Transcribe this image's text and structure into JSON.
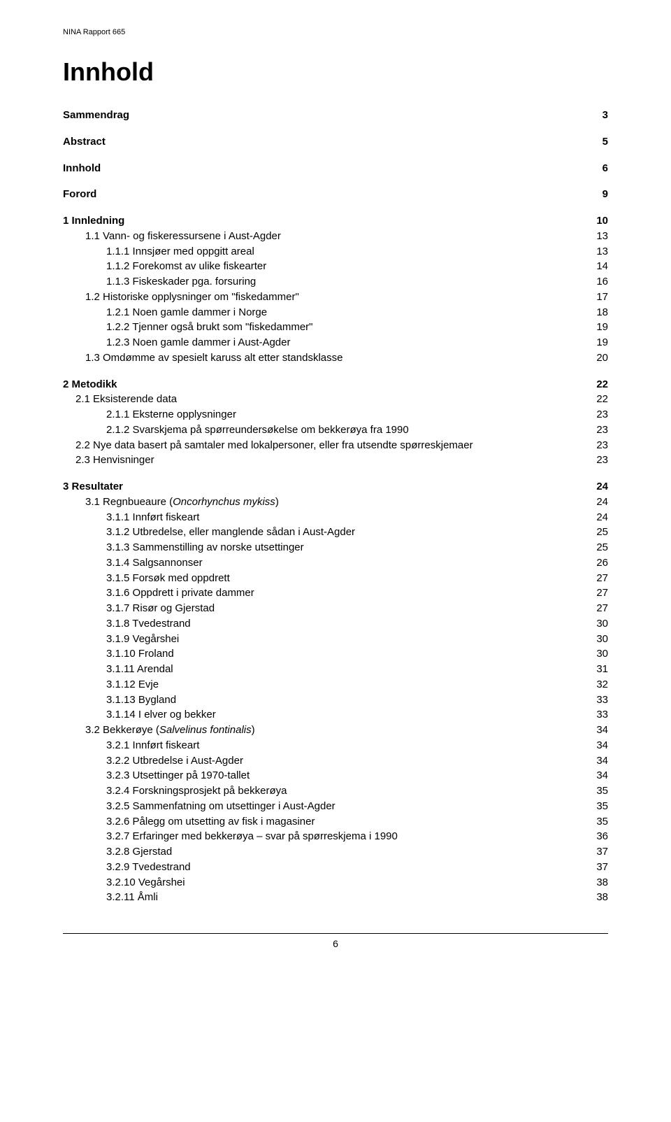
{
  "running_header": "NINA Rapport 665",
  "main_title": "Innhold",
  "page_number": "6",
  "toc": [
    {
      "level": 0,
      "bold": true,
      "label": "Sammendrag",
      "page": "3",
      "gap_after": true
    },
    {
      "level": 0,
      "bold": true,
      "label": "Abstract",
      "page": "5",
      "gap_after": true
    },
    {
      "level": 0,
      "bold": true,
      "label": "Innhold",
      "page": "6",
      "gap_after": true
    },
    {
      "level": 0,
      "bold": true,
      "label": "Forord",
      "page": "9",
      "gap_after": true
    },
    {
      "level": 0,
      "bold": true,
      "label": "1  Innledning",
      "page": "10"
    },
    {
      "level": 1,
      "bold": false,
      "label": "1.1 Vann- og fiskeressursene i Aust-Agder",
      "page": "13"
    },
    {
      "level": 2,
      "bold": false,
      "label": "1.1.1  Innsjøer med oppgitt areal",
      "page": "13"
    },
    {
      "level": 2,
      "bold": false,
      "label": "1.1.2  Forekomst av ulike fiskearter",
      "page": "14"
    },
    {
      "level": 2,
      "bold": false,
      "label": "1.1.3  Fiskeskader pga. forsuring",
      "page": "16"
    },
    {
      "level": 1,
      "bold": false,
      "label": "1.2 Historiske opplysninger om \"fiskedammer\"",
      "page": "17"
    },
    {
      "level": 2,
      "bold": false,
      "label": "1.2.1  Noen gamle dammer i Norge",
      "page": "18"
    },
    {
      "level": 2,
      "bold": false,
      "label": "1.2.2  Tjenner også brukt som \"fiskedammer\"",
      "page": "19"
    },
    {
      "level": 2,
      "bold": false,
      "label": "1.2.3  Noen gamle dammer i Aust-Agder",
      "page": "19"
    },
    {
      "level": 1,
      "bold": false,
      "label": "1.3 Omdømme av spesielt karuss alt etter standsklasse",
      "page": "20",
      "gap_after": true
    },
    {
      "level": 0,
      "bold": true,
      "label": "2  Metodikk",
      "page": "22"
    },
    {
      "level": 1,
      "bold": false,
      "label": "2.1 Eksisterende data",
      "page": "22",
      "indent": "b"
    },
    {
      "level": 2,
      "bold": false,
      "label": "2.1.1 Eksterne opplysninger",
      "page": "23"
    },
    {
      "level": 2,
      "bold": false,
      "label": "2.1.2 Svarskjema på spørreundersøkelse om bekkerøya fra 1990",
      "page": "23"
    },
    {
      "level": 1,
      "bold": false,
      "label": "2.2 Nye data basert på samtaler med lokalpersoner, eller fra utsendte spørreskjemaer",
      "page": "23",
      "indent": "b"
    },
    {
      "level": 1,
      "bold": false,
      "label": "2.3 Henvisninger",
      "page": "23",
      "indent": "b",
      "gap_after": true
    },
    {
      "level": 0,
      "bold": true,
      "label": "3  Resultater",
      "page": "24"
    },
    {
      "level": 1,
      "bold": false,
      "label": "3.1  Regnbueaure (",
      "italic_part": "Oncorhynchus mykiss",
      "label_after": ")",
      "page": "24"
    },
    {
      "level": 2,
      "bold": false,
      "label": "3.1.1 Innført fiskeart",
      "page": "24"
    },
    {
      "level": 2,
      "bold": false,
      "label": "3.1.2 Utbredelse, eller manglende sådan i Aust-Agder",
      "page": "25"
    },
    {
      "level": 2,
      "bold": false,
      "label": "3.1.3 Sammenstilling av norske utsettinger",
      "page": "25"
    },
    {
      "level": 2,
      "bold": false,
      "label": "3.1.4 Salgsannonser",
      "page": "26"
    },
    {
      "level": 2,
      "bold": false,
      "label": "3.1.5 Forsøk med oppdrett",
      "page": "27"
    },
    {
      "level": 2,
      "bold": false,
      "label": "3.1.6 Oppdrett i private dammer",
      "page": "27"
    },
    {
      "level": 2,
      "bold": false,
      "label": "3.1.7 Risør og Gjerstad",
      "page": "27"
    },
    {
      "level": 2,
      "bold": false,
      "label": "3.1.8 Tvedestrand",
      "page": "30"
    },
    {
      "level": 2,
      "bold": false,
      "label": "3.1.9 Vegårshei",
      "page": "30"
    },
    {
      "level": 2,
      "bold": false,
      "label": "3.1.10 Froland",
      "page": "30"
    },
    {
      "level": 2,
      "bold": false,
      "label": "3.1.11 Arendal",
      "page": "31"
    },
    {
      "level": 2,
      "bold": false,
      "label": "3.1.12 Evje",
      "page": "32"
    },
    {
      "level": 2,
      "bold": false,
      "label": "3.1.13 Bygland",
      "page": "33"
    },
    {
      "level": 2,
      "bold": false,
      "label": "3.1.14 I elver og bekker",
      "page": "33"
    },
    {
      "level": 1,
      "bold": false,
      "label": "3.2  Bekkerøye (",
      "italic_part": "Salvelinus fontinalis",
      "label_after": ")",
      "page": "34"
    },
    {
      "level": 2,
      "bold": false,
      "label": "3.2.1 Innført fiskeart",
      "page": "34"
    },
    {
      "level": 2,
      "bold": false,
      "label": "3.2.2 Utbredelse i Aust-Agder",
      "page": "34"
    },
    {
      "level": 2,
      "bold": false,
      "label": "3.2.3 Utsettinger på 1970-tallet",
      "page": "34"
    },
    {
      "level": 2,
      "bold": false,
      "label": "3.2.4 Forskningsprosjekt på bekkerøya",
      "page": "35"
    },
    {
      "level": 2,
      "bold": false,
      "label": "3.2.5 Sammenfatning om utsettinger i Aust-Agder",
      "page": "35"
    },
    {
      "level": 2,
      "bold": false,
      "label": "3.2.6 Pålegg om utsetting av fisk i magasiner",
      "page": "35"
    },
    {
      "level": 2,
      "bold": false,
      "label": "3.2.7 Erfaringer med bekkerøya – svar på spørreskjema i 1990",
      "page": "36"
    },
    {
      "level": 2,
      "bold": false,
      "label": "3.2.8 Gjerstad",
      "page": "37"
    },
    {
      "level": 2,
      "bold": false,
      "label": "3.2.9 Tvedestrand",
      "page": "37"
    },
    {
      "level": 2,
      "bold": false,
      "label": "3.2.10 Vegårshei",
      "page": "38"
    },
    {
      "level": 2,
      "bold": false,
      "label": "3.2.11 Åmli",
      "page": "38"
    }
  ]
}
